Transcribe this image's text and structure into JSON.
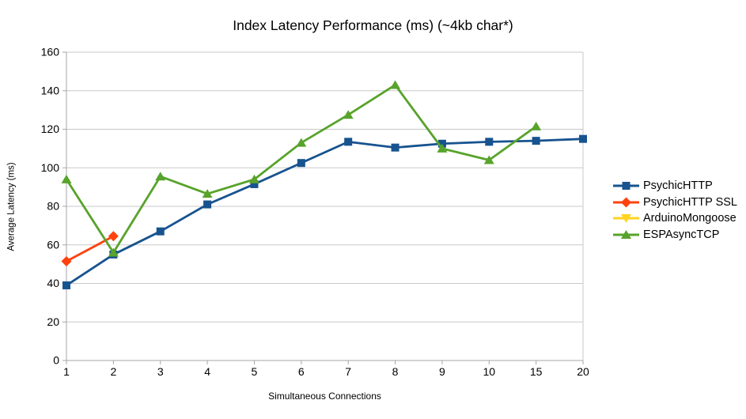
{
  "chart_data": {
    "type": "line",
    "title": "Index Latency Performance (ms) (~4kb char*)",
    "xlabel": "Simultaneous Connections",
    "ylabel": "Average Latency (ms)",
    "x_type": "categorical",
    "categories": [
      "1",
      "2",
      "3",
      "4",
      "5",
      "6",
      "7",
      "8",
      "9",
      "10",
      "15",
      "20"
    ],
    "ylim": [
      0,
      160
    ],
    "y_ticks": [
      0,
      20,
      40,
      60,
      80,
      100,
      120,
      140,
      160
    ],
    "grid": "horizontal",
    "legend_position": "right",
    "axis_color": "#a6a6a6",
    "grid_color": "#c8c8c8",
    "text_color": "#000000",
    "series": [
      {
        "name": "PsychicHTTP",
        "color": "#17538f",
        "marker": "square",
        "values": [
          39,
          55,
          67,
          81,
          91.5,
          102.5,
          113.5,
          110.5,
          112.5,
          113.5,
          114,
          115
        ]
      },
      {
        "name": "PsychicHTTP SSL",
        "color": "#ff420e",
        "marker": "diamond",
        "values": [
          51.5,
          64.5,
          null,
          null,
          null,
          null,
          null,
          null,
          null,
          null,
          null,
          null
        ]
      },
      {
        "name": "ArduinoMongoose",
        "color": "#ffd320",
        "marker": "triangle-down",
        "values": [
          null,
          null,
          null,
          null,
          null,
          null,
          null,
          null,
          null,
          null,
          null,
          null
        ]
      },
      {
        "name": "ESPAsyncTCP",
        "color": "#58a32b",
        "marker": "triangle-up",
        "values": [
          94,
          56,
          95.5,
          86.5,
          94,
          113,
          127.5,
          143,
          110,
          104,
          121.5,
          null
        ]
      }
    ]
  }
}
